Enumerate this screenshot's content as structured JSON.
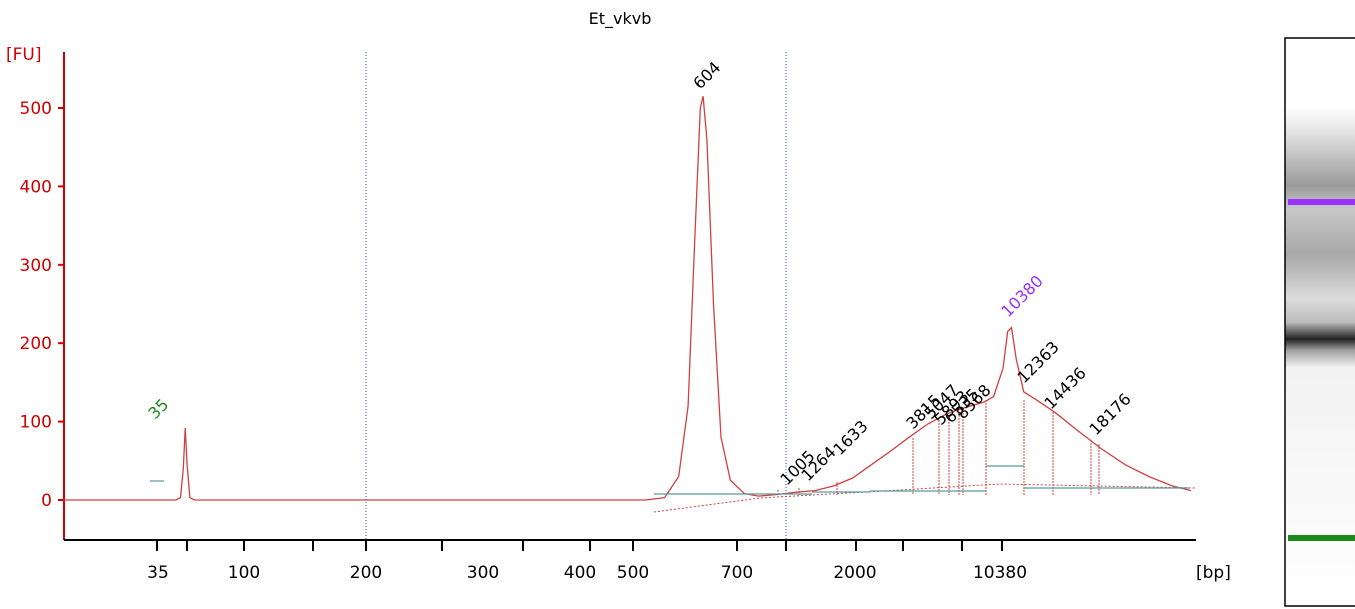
{
  "title": "Et_vkvb",
  "colors": {
    "axis_y": "#d00000",
    "trace": "#d04040",
    "marker_green": "#1a8a1a",
    "marker_purple": "#9b30ff",
    "baseline_seg": "#5a9a9a",
    "guide": "#3050d0"
  },
  "chart_data": {
    "type": "line",
    "title": "Et_vkvb",
    "ylabel": "[FU]",
    "xlabel": "[bp]",
    "ylim": [
      -50,
      560
    ],
    "y_ticks": [
      0,
      100,
      200,
      300,
      400,
      500
    ],
    "x_tick_labels": [
      "35",
      "100",
      "200",
      "300",
      "400",
      "500",
      "700",
      "2000",
      "10380"
    ],
    "grid": false,
    "series": [
      {
        "trace_points_time_fu": [
          [
            0,
            0
          ],
          [
            120,
            0
          ],
          [
            125,
            3
          ],
          [
            128,
            40
          ],
          [
            130,
            92
          ],
          [
            132,
            45
          ],
          [
            135,
            3
          ],
          [
            140,
            0
          ],
          [
            620,
            0
          ],
          [
            640,
            3
          ],
          [
            655,
            30
          ],
          [
            665,
            120
          ],
          [
            672,
            330
          ],
          [
            678,
            500
          ],
          [
            681,
            515
          ],
          [
            685,
            460
          ],
          [
            692,
            250
          ],
          [
            700,
            80
          ],
          [
            710,
            25
          ],
          [
            725,
            8
          ],
          [
            740,
            5
          ],
          [
            760,
            7
          ],
          [
            780,
            10
          ],
          [
            800,
            12
          ],
          [
            820,
            18
          ],
          [
            840,
            28
          ],
          [
            860,
            45
          ],
          [
            880,
            62
          ],
          [
            900,
            80
          ],
          [
            920,
            97
          ],
          [
            940,
            110
          ],
          [
            960,
            118
          ],
          [
            980,
            125
          ],
          [
            990,
            132
          ],
          [
            1000,
            168
          ],
          [
            1005,
            215
          ],
          [
            1009,
            220
          ],
          [
            1014,
            180
          ],
          [
            1022,
            138
          ],
          [
            1035,
            128
          ],
          [
            1055,
            112
          ],
          [
            1080,
            88
          ],
          [
            1105,
            65
          ],
          [
            1130,
            45
          ],
          [
            1155,
            30
          ],
          [
            1180,
            18
          ],
          [
            1200,
            12
          ]
        ]
      }
    ],
    "peaks": [
      {
        "label": "35",
        "color": "green"
      },
      {
        "label": "604",
        "color": "black"
      },
      {
        "label": "1005",
        "color": "black"
      },
      {
        "label": "1264",
        "color": "black"
      },
      {
        "label": "1633",
        "color": "black"
      },
      {
        "label": "3815",
        "color": "black"
      },
      {
        "label": "5047",
        "color": "black"
      },
      {
        "label": "5893",
        "color": "black"
      },
      {
        "label": "6535",
        "color": "black"
      },
      {
        "label": "8568",
        "color": "black"
      },
      {
        "label": "10380",
        "color": "purple"
      },
      {
        "label": "12363",
        "color": "black"
      },
      {
        "label": "14436",
        "color": "black"
      },
      {
        "label": "18176",
        "color": "black"
      }
    ]
  },
  "gel_lane": {
    "markers": [
      {
        "name": "upper-marker-band",
        "color": "purple"
      },
      {
        "name": "lower-marker-band",
        "color": "green"
      }
    ]
  }
}
